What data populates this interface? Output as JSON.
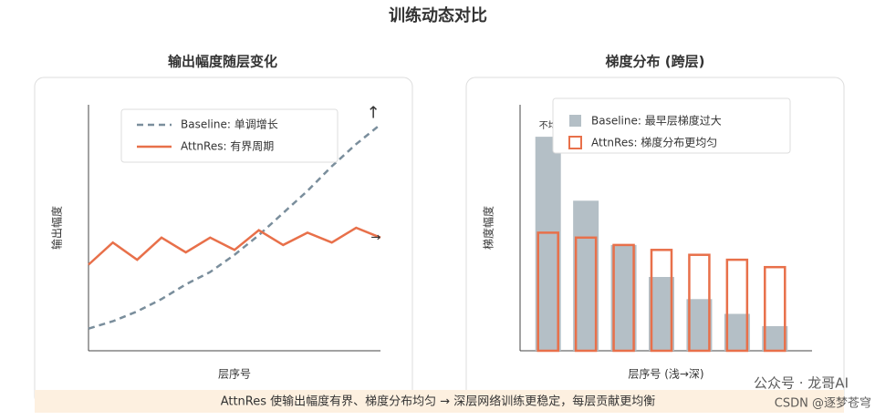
{
  "title": "训练动态对比",
  "footer": "AttnRes 使输出幅度有界、梯度分布均匀 → 深层网络训练更稳定，每层贡献更均衡",
  "watermark": [
    "公众号 · 龙哥AI",
    "CSDN @逐梦苍穹"
  ],
  "chart_data": [
    {
      "type": "line",
      "title": "输出幅度随层变化",
      "x_label": "层序号",
      "y_label": "输出幅度",
      "x": [
        0,
        1,
        2,
        3,
        4,
        5,
        6,
        7,
        8,
        9,
        10,
        11,
        12
      ],
      "xlim": [
        0,
        12
      ],
      "ylim": [
        0,
        100
      ],
      "series": [
        {
          "name": "Baseline: 单调增长",
          "color": "#7a8e9c",
          "dashed": true,
          "values": [
            9,
            12,
            16,
            21,
            27,
            32,
            39,
            47,
            56,
            65,
            75,
            84,
            92
          ],
          "annotation": "↑"
        },
        {
          "name": "AttnRes: 有界周期",
          "color": "#e8704a",
          "dashed": false,
          "values": [
            35,
            44,
            37,
            46,
            40,
            46,
            41,
            49,
            43,
            48,
            44,
            50,
            46
          ],
          "annotation": "→"
        }
      ]
    },
    {
      "type": "bar",
      "title": "梯度分布 (跨层)",
      "x_label": "层序号 (浅→深)",
      "y_label": "梯度幅度",
      "categories": [
        null,
        null,
        null,
        null,
        null,
        null,
        null
      ],
      "ylim": [
        0,
        100
      ],
      "annotation": "不均",
      "series": [
        {
          "name": "Baseline: 最早层梯度过大",
          "color": "#b4bfc6",
          "style": "fill",
          "values": [
            87,
            61,
            43,
            30,
            21,
            15,
            10
          ]
        },
        {
          "name": "AttnRes: 梯度分布更均匀",
          "color": "#e8704a",
          "style": "outline",
          "values": [
            48,
            46,
            43,
            41,
            39,
            37,
            34
          ]
        }
      ]
    }
  ]
}
